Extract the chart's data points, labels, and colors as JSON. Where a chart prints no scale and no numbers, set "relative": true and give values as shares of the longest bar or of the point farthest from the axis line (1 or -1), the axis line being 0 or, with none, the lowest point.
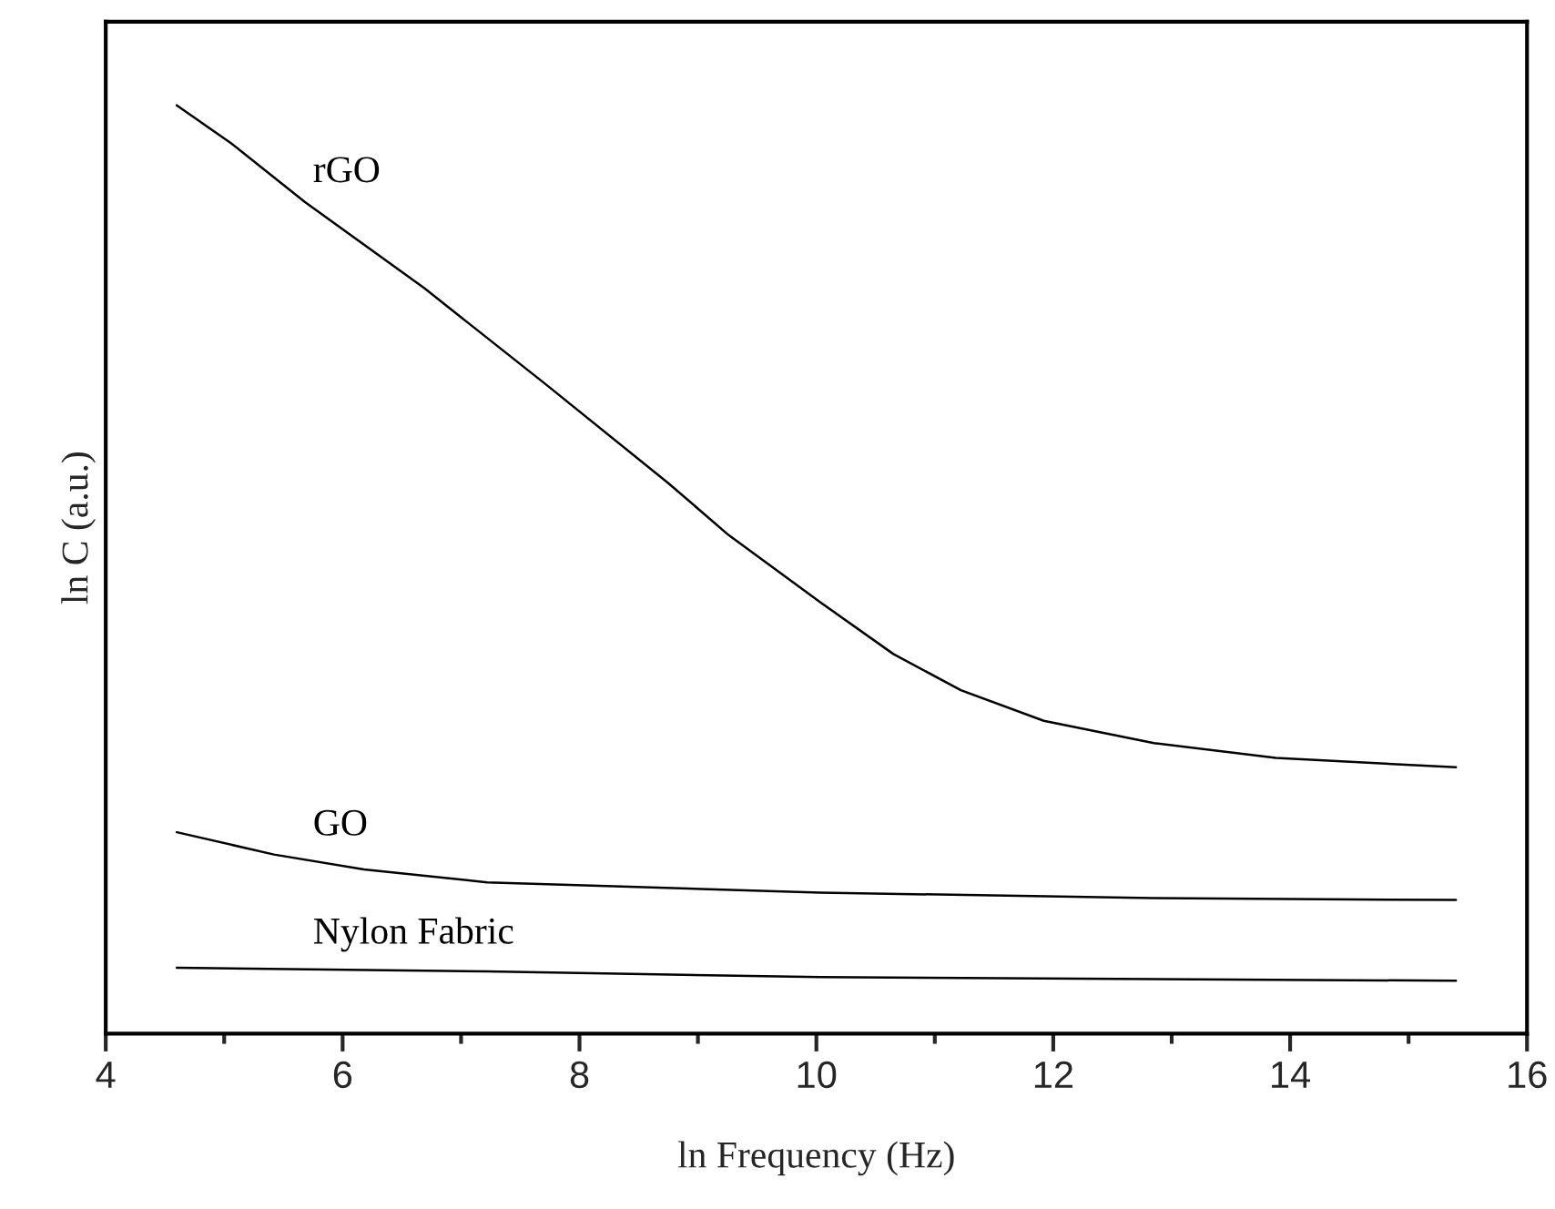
{
  "chart_data": {
    "type": "line",
    "relative": true,
    "xlabel": "ln Frequency (Hz)",
    "ylabel": "ln C (a.u.)",
    "xlim": [
      4,
      16
    ],
    "xticks": [
      4,
      6,
      8,
      10,
      12,
      14,
      16
    ],
    "grid": false,
    "legend": false,
    "series": [
      {
        "name": "rGO",
        "color": "#000000",
        "x": [
          4.6,
          5.06,
          5.68,
          6.69,
          7.72,
          8.75,
          9.26,
          10.03,
          10.65,
          11.22,
          11.92,
          12.85,
          13.88,
          15.4
        ],
        "values": [
          1.0,
          0.959,
          0.896,
          0.803,
          0.699,
          0.593,
          0.537,
          0.465,
          0.409,
          0.37,
          0.337,
          0.313,
          0.297,
          0.287
        ]
      },
      {
        "name": "GO",
        "color": "#000000",
        "x": [
          4.6,
          5.42,
          6.18,
          7.22,
          8.23,
          10.03,
          12.85,
          15.4
        ],
        "values": [
          0.217,
          0.193,
          0.177,
          0.163,
          0.159,
          0.152,
          0.146,
          0.144
        ]
      },
      {
        "name": "Nylon Fabric",
        "color": "#000000",
        "x": [
          4.6,
          7.22,
          10.03,
          15.4
        ],
        "values": [
          0.071,
          0.067,
          0.061,
          0.057
        ]
      }
    ]
  }
}
